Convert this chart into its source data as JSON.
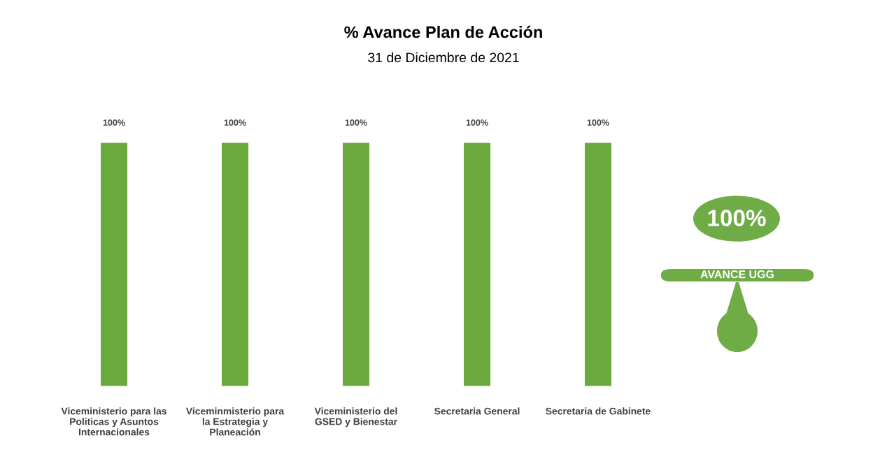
{
  "chart_data": {
    "type": "bar",
    "title": "% Avance Plan de Acción",
    "subtitle": "31 de Diciembre de 2021",
    "categories": [
      "Viceministerio para las\nPoliticas y Asuntos\nInternacionales",
      "Viceminmisterio para\nla Estrategia y\nPlaneación",
      "Viceministerio del\nGSED y Bienestar",
      "Secretaria General",
      "Secretaria de Gabinete"
    ],
    "values": [
      100,
      100,
      100,
      100,
      100
    ],
    "color": "#6aa93c",
    "value_labels": [
      "100%",
      "100%",
      "100%",
      "100%",
      "100%"
    ],
    "annotations": [
      "100%",
      "AVANCE UGG"
    ],
    "grid": false,
    "legend": false,
    "tick_labels": "x"
  }
}
